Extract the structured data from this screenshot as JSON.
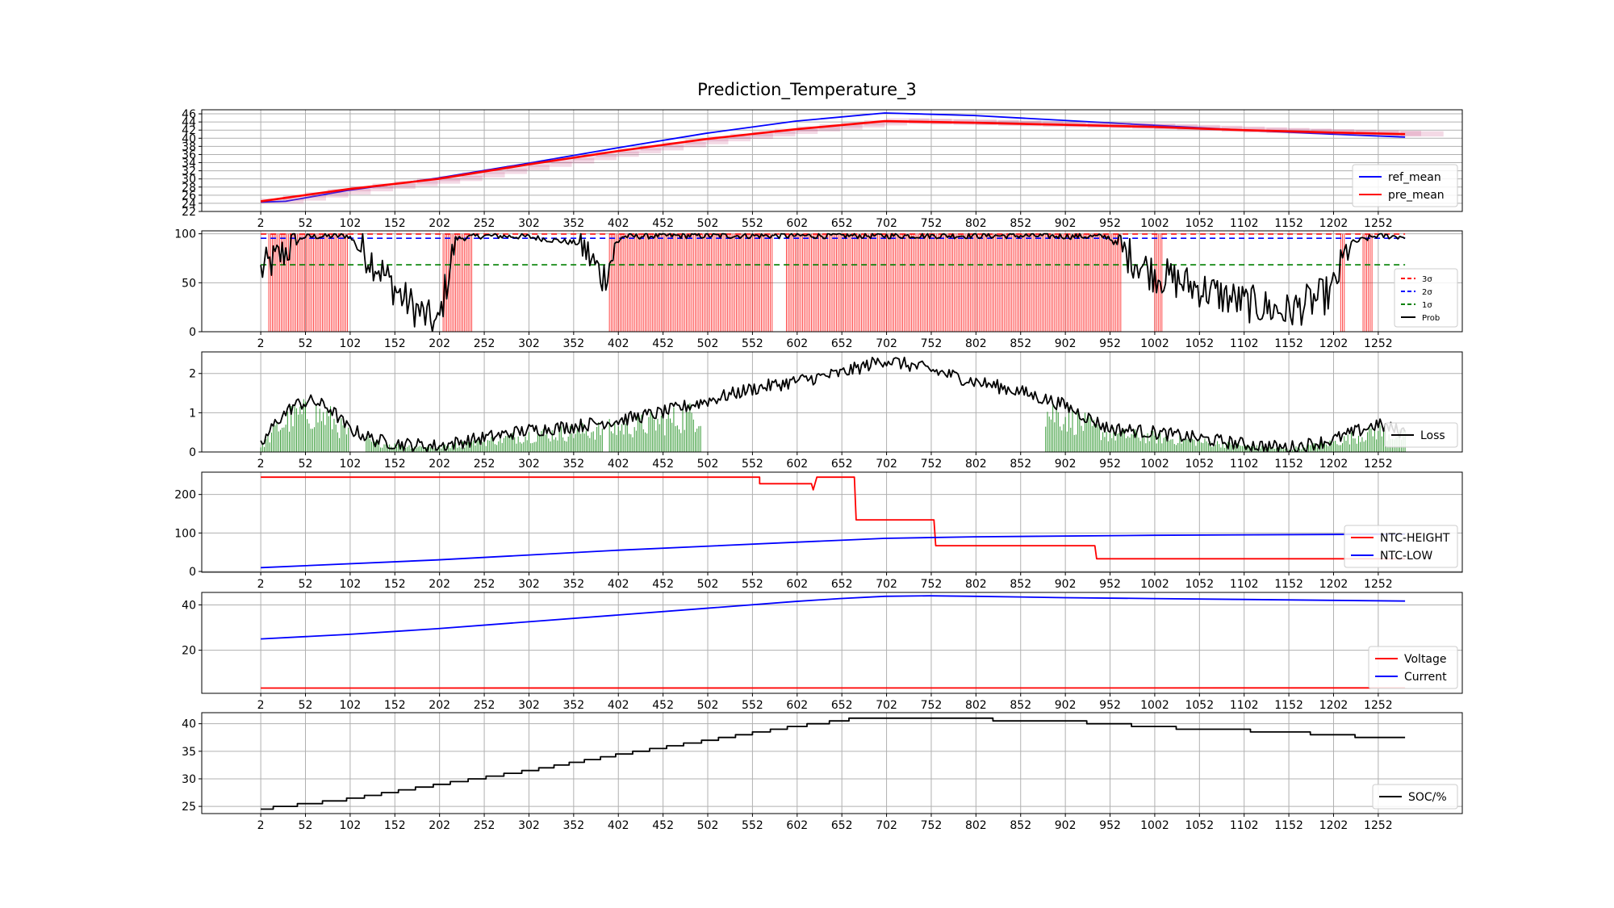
{
  "figure": {
    "title": "Prediction_Temperature_3",
    "x_ticks": [
      2,
      52,
      102,
      152,
      202,
      252,
      302,
      352,
      402,
      452,
      502,
      552,
      602,
      652,
      702,
      752,
      802,
      852,
      902,
      952,
      1002,
      1052,
      1102,
      1152,
      1202,
      1252
    ]
  },
  "colors": {
    "red": "#ff0000",
    "blue": "#0000ff",
    "green": "#008000",
    "black": "#000000",
    "grid": "#b0b0b0"
  },
  "chart_data": [
    {
      "id": "temperature",
      "type": "line",
      "title": "Prediction_Temperature_3",
      "xlim": [
        -64,
        1346
      ],
      "ylim": [
        22,
        47
      ],
      "y_ticks": [
        22,
        24,
        26,
        28,
        30,
        32,
        34,
        36,
        38,
        40,
        42,
        44,
        46
      ],
      "grid": true,
      "legend": "lower right",
      "series": [
        {
          "name": "ref_mean",
          "color": "#0000ff",
          "x": [
            2,
            30,
            100,
            200,
            300,
            400,
            500,
            600,
            700,
            800,
            900,
            1000,
            1100,
            1200,
            1282
          ],
          "y": [
            24.3,
            24.5,
            27.2,
            30.2,
            33.8,
            37.6,
            41.2,
            44.2,
            46.2,
            45.6,
            44.4,
            43.2,
            42.0,
            41.0,
            40.3
          ]
        },
        {
          "name": "pre_mean",
          "color": "#ff0000",
          "x": [
            2,
            100,
            200,
            300,
            400,
            500,
            600,
            700,
            800,
            900,
            1000,
            1100,
            1200,
            1282
          ],
          "y": [
            24.5,
            27.5,
            30.0,
            33.5,
            36.8,
            39.8,
            42.2,
            44.2,
            43.8,
            43.3,
            42.8,
            42.0,
            41.4,
            41.0
          ]
        }
      ]
    },
    {
      "id": "probability",
      "type": "line",
      "ylim": [
        0,
        103
      ],
      "y_ticks": [
        0,
        50,
        100
      ],
      "grid": true,
      "legend": "lower right",
      "series": [
        {
          "name": "3σ",
          "color": "#ff0000",
          "style": "dashed",
          "y": 99.7
        },
        {
          "name": "2σ",
          "color": "#0000ff",
          "style": "dashed",
          "y": 95.4
        },
        {
          "name": "1σ",
          "color": "#008000",
          "style": "dashed",
          "y": 68.3
        },
        {
          "name": "Prob",
          "color": "#000000",
          "x": [
            2,
            50,
            100,
            130,
            160,
            200,
            220,
            250,
            300,
            360,
            385,
            405,
            450,
            550,
            650,
            750,
            850,
            950,
            970,
            1000,
            1050,
            1100,
            1150,
            1200,
            1220,
            1250,
            1282
          ],
          "y": [
            62,
            97,
            98,
            70,
            35,
            5,
            95,
            98,
            97,
            90,
            55,
            97,
            98,
            98,
            98,
            98,
            98,
            97,
            80,
            60,
            45,
            30,
            20,
            40,
            90,
            98,
            97
          ]
        }
      ],
      "alarm_regions": [
        [
          11,
          100
        ],
        [
          206,
          238
        ],
        [
          392,
          575
        ],
        [
          590,
          965
        ],
        [
          1002,
          1010
        ],
        [
          1210,
          1215
        ],
        [
          1235,
          1245
        ]
      ]
    },
    {
      "id": "loss",
      "type": "line",
      "ylim": [
        0,
        2.55
      ],
      "y_ticks": [
        0,
        1,
        2
      ],
      "grid": true,
      "legend": "lower right",
      "series": [
        {
          "name": "Loss",
          "color": "#000000",
          "x": [
            2,
            20,
            40,
            60,
            80,
            100,
            130,
            160,
            200,
            250,
            300,
            350,
            400,
            450,
            500,
            550,
            600,
            650,
            700,
            750,
            800,
            850,
            900,
            950,
            1000,
            1050,
            1100,
            1150,
            1200,
            1250,
            1282
          ],
          "y": [
            0.15,
            0.8,
            1.2,
            1.3,
            1.1,
            0.6,
            0.3,
            0.2,
            0.15,
            0.35,
            0.55,
            0.65,
            0.8,
            1.0,
            1.3,
            1.6,
            1.8,
            2.0,
            2.35,
            2.1,
            1.8,
            1.55,
            1.2,
            0.6,
            0.5,
            0.35,
            0.2,
            0.1,
            0.3,
            0.7,
            0.5
          ]
        }
      ],
      "alarm_regions": [
        [
          2,
          100
        ],
        [
          120,
          385
        ],
        [
          392,
          495
        ],
        [
          880,
          1282
        ]
      ]
    },
    {
      "id": "ntc",
      "type": "line",
      "ylim": [
        -2,
        258
      ],
      "y_ticks": [
        0,
        100,
        200
      ],
      "grid": true,
      "legend": "lower right",
      "series": [
        {
          "name": "NTC-HEIGHT",
          "color": "#ff0000",
          "x": [
            2,
            560,
            560,
            618,
            620,
            624,
            626,
            666,
            668,
            755,
            757,
            935,
            937,
            1282
          ],
          "y": [
            245,
            245,
            228,
            228,
            212,
            245,
            245,
            245,
            134,
            134,
            67,
            67,
            33,
            33
          ]
        },
        {
          "name": "NTC-LOW",
          "color": "#0000ff",
          "x": [
            2,
            200,
            400,
            600,
            700,
            800,
            1000,
            1282
          ],
          "y": [
            10,
            30,
            55,
            76,
            86,
            90,
            94,
            97
          ]
        }
      ]
    },
    {
      "id": "voltage_current",
      "type": "line",
      "ylim": [
        1,
        45.5
      ],
      "y_ticks": [
        20,
        40
      ],
      "grid": true,
      "legend": "lower right",
      "series": [
        {
          "name": "Voltage",
          "color": "#ff0000",
          "x": [
            2,
            1282
          ],
          "y": [
            3.3,
            3.4
          ]
        },
        {
          "name": "Current",
          "color": "#0000ff",
          "x": [
            2,
            100,
            200,
            300,
            400,
            500,
            600,
            650,
            700,
            750,
            800,
            850,
            900,
            1000,
            1100,
            1200,
            1282
          ],
          "y": [
            25,
            27,
            29.5,
            32.5,
            35.5,
            38.5,
            41.5,
            42.8,
            43.8,
            44.0,
            43.8,
            43.5,
            43.2,
            42.8,
            42.4,
            42.0,
            41.7
          ]
        }
      ]
    },
    {
      "id": "soc",
      "type": "line",
      "ylim": [
        23.7,
        42
      ],
      "y_ticks": [
        25,
        30,
        35,
        40
      ],
      "grid": true,
      "legend": "lower right",
      "series": [
        {
          "name": "SOC/%",
          "color": "#000000",
          "x": [
            2,
            100,
            200,
            300,
            400,
            500,
            600,
            650,
            670,
            700,
            750,
            800,
            840,
            900,
            950,
            1000,
            1050,
            1100,
            1150,
            1200,
            1250,
            1282
          ],
          "y": [
            24.5,
            26.3,
            28.9,
            31.4,
            34.3,
            36.9,
            39.5,
            40.5,
            41.0,
            41.0,
            41.0,
            41.0,
            40.5,
            40.5,
            40.0,
            39.5,
            39.0,
            38.8,
            38.5,
            38.0,
            37.5,
            37.5
          ]
        }
      ]
    }
  ]
}
